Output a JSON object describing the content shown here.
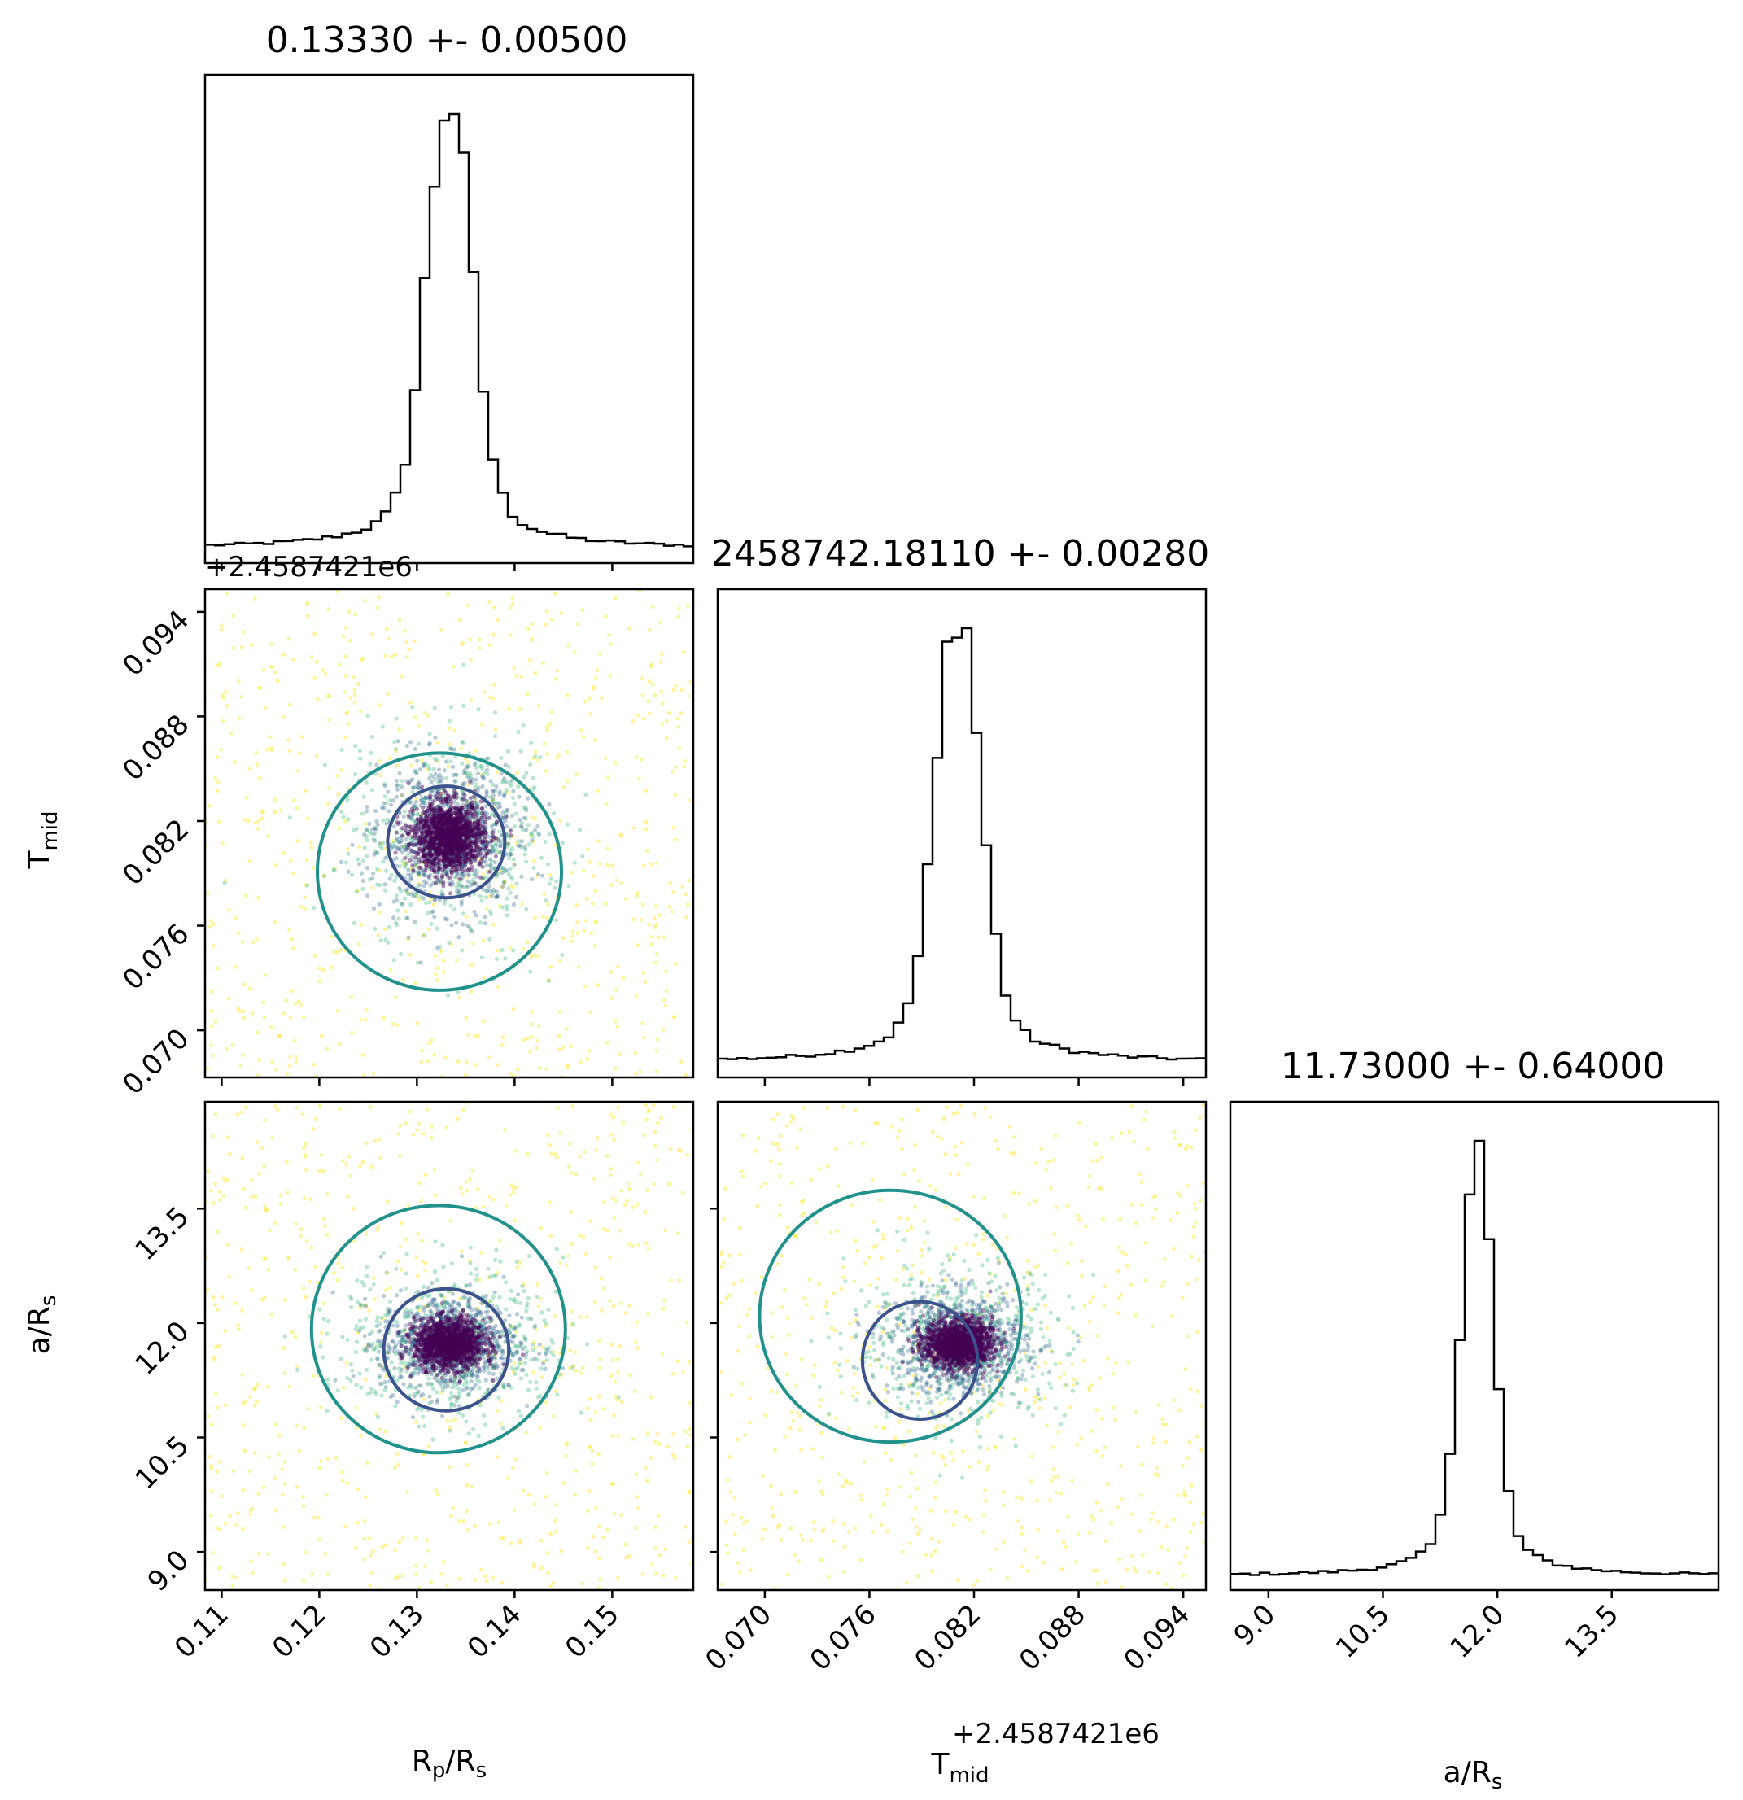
{
  "chart_data": {
    "type": "scatter",
    "subtype": "corner-plot",
    "parameters": [
      {
        "key": "rp",
        "label": "R",
        "label_sub": "p",
        "label_tail": "/R",
        "label_tail_sub": "s"
      },
      {
        "key": "tmid",
        "label": "T",
        "label_sub": "mid",
        "label_tail": "",
        "label_tail_sub": ""
      },
      {
        "key": "ars",
        "label": "a/R",
        "label_sub": "s",
        "label_tail": "",
        "label_tail_sub": ""
      }
    ],
    "titles": [
      "0.13330 +- 0.00500",
      "2458742.18110 +- 0.00280",
      "11.73000 +- 0.64000"
    ],
    "offset_text": "+2.4587421e6",
    "ranges": {
      "rp": [
        0.1083,
        0.1583
      ],
      "tmid": [
        0.0673,
        0.0953
      ],
      "ars": [
        8.5,
        14.9
      ]
    },
    "ticks": {
      "rp": {
        "values": [
          0.11,
          0.12,
          0.13,
          0.14,
          0.15
        ],
        "labels": [
          "0.11",
          "0.12",
          "0.13",
          "0.14",
          "0.15"
        ]
      },
      "tmid": {
        "values": [
          0.07,
          0.076,
          0.082,
          0.088,
          0.094
        ],
        "labels": [
          "0.070",
          "0.076",
          "0.082",
          "0.088",
          "0.094"
        ]
      },
      "ars": {
        "values": [
          9.0,
          10.5,
          12.0,
          13.5
        ],
        "labels": [
          "9.0",
          "10.5",
          "12.0",
          "13.5"
        ]
      }
    },
    "histograms": {
      "rp": {
        "peak": 0.1333,
        "sigma": 0.0022
      },
      "tmid": {
        "peak": 0.0811,
        "sigma": 0.0012
      },
      "ars": {
        "peak": 11.73,
        "sigma": 0.2
      }
    },
    "contours": {
      "rp_tmid": [
        {
          "level": "inner",
          "center": [
            0.133,
            0.0808
          ],
          "radii": [
            0.006,
            0.0032
          ]
        },
        {
          "level": "outer",
          "center": [
            0.1323,
            0.0791
          ],
          "radii": [
            0.0125,
            0.0068
          ]
        }
      ],
      "rp_ars": [
        {
          "level": "inner",
          "center": [
            0.133,
            11.65
          ],
          "radii": [
            0.0064,
            0.8
          ]
        },
        {
          "level": "outer",
          "center": [
            0.1322,
            11.92
          ],
          "radii": [
            0.013,
            1.62
          ]
        }
      ],
      "tmid_ars": [
        {
          "level": "inner",
          "center": [
            0.0789,
            11.51
          ],
          "radii": [
            0.0033,
            0.77
          ]
        },
        {
          "level": "outer",
          "center": [
            0.0772,
            12.09
          ],
          "radii": [
            0.0075,
            1.65
          ]
        }
      ]
    },
    "colors": {
      "hist": "#000000",
      "contour_inner": "#3b528b",
      "contour_outer": "#21918c",
      "point_core": "#440154",
      "point_mid": "#31688e",
      "point_halo": "#35b779",
      "point_outer": "#fde725"
    },
    "grid": false,
    "legend": "none"
  }
}
